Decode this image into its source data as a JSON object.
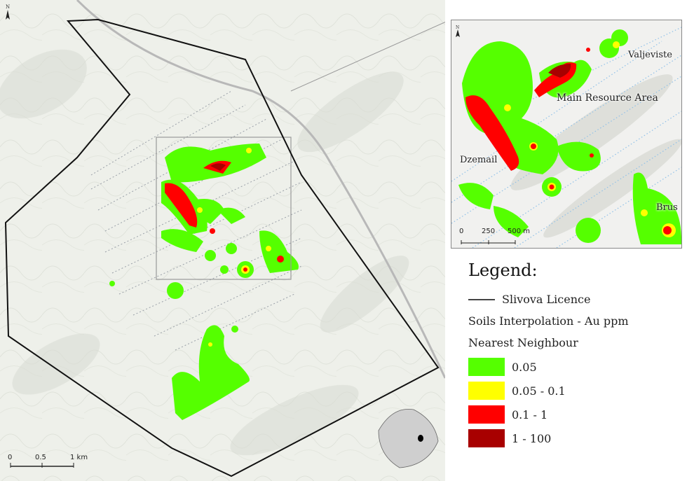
{
  "map": {
    "north_label": "N",
    "scale": {
      "ticks": [
        "0",
        "0.5",
        "1 km"
      ]
    }
  },
  "inset": {
    "north_label": "N",
    "labels": {
      "valjeviste": "Valjeviste",
      "main": "Main Resource Area",
      "dzemail": "Dzemail",
      "brus": "Brus"
    },
    "scale": {
      "ticks": [
        "0",
        "250",
        "500 m"
      ]
    }
  },
  "legend": {
    "title": "Legend:",
    "licence": "Slivova Licence",
    "subtitle1": "Soils Interpolation - Au ppm",
    "subtitle2": "Nearest Neighbour",
    "classes": [
      {
        "label": "0.05",
        "color": "#55ff00"
      },
      {
        "label": "0.05 - 0.1",
        "color": "#ffff00"
      },
      {
        "label": "0.1 - 1",
        "color": "#ff0000"
      },
      {
        "label": "1 - 100",
        "color": "#a80000"
      }
    ]
  },
  "colors": {
    "licence_outline": "#111111",
    "sample_lines": "#8aa0c0",
    "terrain": "#eef0ea"
  }
}
